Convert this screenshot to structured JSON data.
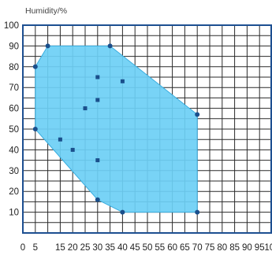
{
  "chart_data": {
    "type": "scatter",
    "title": "",
    "ylabel": "Humidity/%",
    "xlabel": "",
    "xlim": [
      0,
      100
    ],
    "ylim": [
      0,
      100
    ],
    "x_ticks": [
      0,
      5,
      15,
      20,
      25,
      30,
      35,
      40,
      45,
      50,
      55,
      60,
      65,
      70,
      75,
      80,
      85,
      90,
      95,
      100
    ],
    "y_ticks": [
      10,
      20,
      30,
      40,
      50,
      60,
      70,
      80,
      90,
      100
    ],
    "grid": true,
    "region": [
      {
        "x": 10,
        "y": 90
      },
      {
        "x": 35,
        "y": 90
      },
      {
        "x": 70,
        "y": 57
      },
      {
        "x": 70,
        "y": 10
      },
      {
        "x": 40,
        "y": 10
      },
      {
        "x": 30,
        "y": 16
      },
      {
        "x": 5,
        "y": 50
      },
      {
        "x": 5,
        "y": 80
      }
    ],
    "boundary_points": [
      {
        "x": 5,
        "y": 80
      },
      {
        "x": 10,
        "y": 90
      },
      {
        "x": 35,
        "y": 90
      },
      {
        "x": 70,
        "y": 57
      },
      {
        "x": 70,
        "y": 10
      },
      {
        "x": 40,
        "y": 10
      },
      {
        "x": 30,
        "y": 16
      },
      {
        "x": 5,
        "y": 50
      }
    ],
    "interior_points": [
      {
        "x": 30,
        "y": 75
      },
      {
        "x": 40,
        "y": 73
      },
      {
        "x": 30,
        "y": 64
      },
      {
        "x": 25,
        "y": 60
      },
      {
        "x": 15,
        "y": 45
      },
      {
        "x": 20,
        "y": 40
      },
      {
        "x": 30,
        "y": 35
      }
    ],
    "colors": {
      "region_fill": "#6dcff5",
      "region_stroke": "#3aaee0",
      "point": "#1a4f8c",
      "grid": "#2a2a2a",
      "frame": "#1d4f91"
    }
  }
}
